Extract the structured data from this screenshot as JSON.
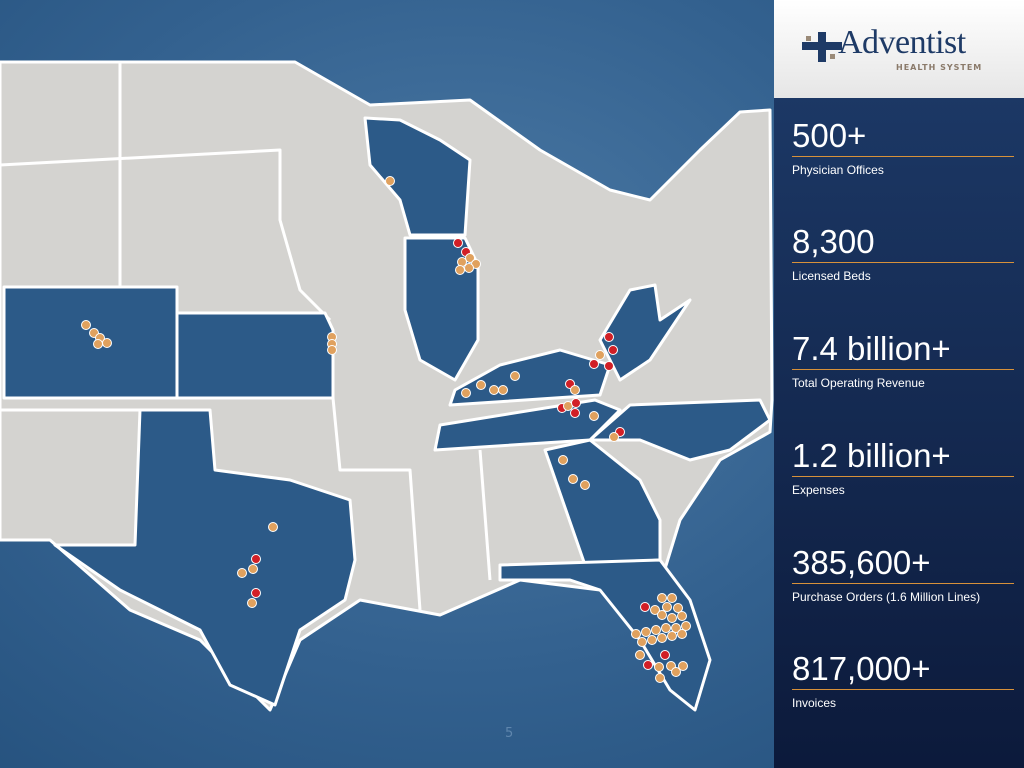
{
  "logo": {
    "name": "Adventist",
    "tagline": "HEALTH SYSTEM"
  },
  "stats": [
    {
      "value": "500+",
      "label": "Physician Offices"
    },
    {
      "value": "8,300",
      "label": "Licensed Beds"
    },
    {
      "value": "7.4 billion+",
      "label": "Total Operating Revenue"
    },
    {
      "value": "1.2 billion+",
      "label": "Expenses"
    },
    {
      "value": "385,600+",
      "label": "Purchase Orders (1.6 Million Lines)"
    },
    {
      "value": "817,000+",
      "label": "Invoices"
    }
  ],
  "page_number": "5"
}
